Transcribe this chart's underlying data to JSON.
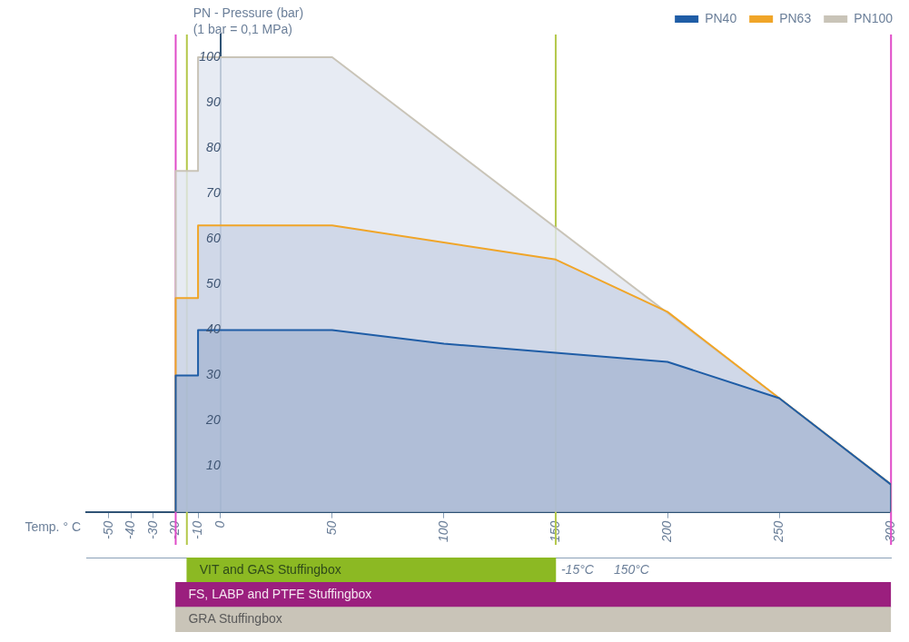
{
  "chart_data": [
    {
      "type": "area",
      "ylabel": "PN - Pressure (bar)\n(1 bar = 0,1 MPa)",
      "xlabel": "Temp. ° C",
      "xlim": [
        -60,
        300
      ],
      "xticks": [
        -50,
        -40,
        -30,
        -20,
        -10,
        0,
        50,
        100,
        150,
        200,
        250,
        300
      ],
      "ylim": [
        0,
        105
      ],
      "yticks": [
        10,
        20,
        30,
        40,
        50,
        60,
        70,
        80,
        90,
        100
      ],
      "grid": false,
      "legend": "top right",
      "series": [
        {
          "name": "PN40",
          "color": "#1f5da6",
          "x": [
            -20,
            -20,
            -10,
            -10,
            50,
            100,
            150,
            200,
            250,
            300,
            300
          ],
          "values": [
            0,
            30,
            30,
            40,
            40,
            37,
            35,
            33,
            25,
            6,
            0
          ]
        },
        {
          "name": "PN63",
          "color": "#f0a528",
          "x": [
            -20,
            -20,
            -10,
            -10,
            50,
            150,
            200,
            250,
            300,
            300
          ],
          "values": [
            0,
            47,
            47,
            63,
            63,
            55.5,
            44,
            25,
            6,
            0
          ]
        },
        {
          "name": "PN100",
          "color": "#c9c4b8",
          "x": [
            -20,
            -20,
            -10,
            -10,
            50,
            250,
            300,
            300
          ],
          "values": [
            0,
            75,
            75,
            100,
            100,
            25,
            6,
            0
          ]
        }
      ],
      "ref_lines": [
        {
          "axis": "x",
          "value": -20,
          "color": "#e04cc8"
        },
        {
          "axis": "x",
          "value": -15,
          "color": "#b4c84a"
        },
        {
          "axis": "x",
          "value": 150,
          "color": "#b4c84a"
        },
        {
          "axis": "x",
          "value": 300,
          "color": "#e04cc8"
        }
      ]
    },
    {
      "type": "bar",
      "orientation": "horizontal",
      "tick_labels": false,
      "xlim": [
        -60,
        300
      ],
      "xticks": [
        -50,
        -40,
        -30,
        -20,
        -10,
        0,
        50,
        100,
        150,
        200,
        250,
        300
      ],
      "categories": [
        "VIT and GAS Stuffingbox",
        "FS, LABP and PTFE Stuffingbox",
        "GRA Stuffingbox"
      ],
      "base": [
        -15,
        -20,
        -20
      ],
      "values": [
        165,
        320,
        320
      ],
      "colors": [
        "#8cb923",
        "#9b1f7e",
        "#c9c4b8"
      ],
      "annotations": [
        "-15°C",
        "150°C"
      ]
    }
  ]
}
